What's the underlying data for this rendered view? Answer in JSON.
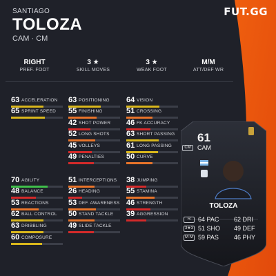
{
  "brand": "FUT.GG",
  "player": {
    "first_name": "SANTIAGO",
    "last_name": "TOLOZA",
    "positions": "CAM · CM"
  },
  "info": [
    {
      "value": "RIGHT",
      "label": "PREF. FOOT"
    },
    {
      "value": "3 ★",
      "label": "SKILL MOVES"
    },
    {
      "value": "3 ★",
      "label": "WEAK FOOT"
    },
    {
      "value": "M/M",
      "label": "ATT/DEF WR"
    }
  ],
  "stats": {
    "acceleration": {
      "value": "63",
      "label": "ACCELERATION"
    },
    "sprint_speed": {
      "value": "65",
      "label": "SPRINT SPEED"
    },
    "positioning": {
      "value": "63",
      "label": "POSITIONING"
    },
    "finishing": {
      "value": "55",
      "label": "FINISHING"
    },
    "shot_power": {
      "value": "42",
      "label": "SHOT POWER"
    },
    "long_shots": {
      "value": "52",
      "label": "LONG SHOTS"
    },
    "volleys": {
      "value": "45",
      "label": "VOLLEYS"
    },
    "penalties": {
      "value": "49",
      "label": "PENALTIES"
    },
    "vision": {
      "value": "64",
      "label": "VISION"
    },
    "crossing": {
      "value": "51",
      "label": "CROSSING"
    },
    "fk_accuracy": {
      "value": "46",
      "label": "FK ACCURACY"
    },
    "short_passing": {
      "value": "63",
      "label": "SHORT PASSING"
    },
    "long_passing": {
      "value": "61",
      "label": "LONG PASSING"
    },
    "curve": {
      "value": "50",
      "label": "CURVE"
    },
    "agility": {
      "value": "70",
      "label": "AGILITY"
    },
    "balance": {
      "value": "48",
      "label": "BALANCE"
    },
    "reactions": {
      "value": "53",
      "label": "REACTIONS"
    },
    "ball_control": {
      "value": "62",
      "label": "BALL CONTROL"
    },
    "dribbling": {
      "value": "63",
      "label": "DRIBBLING"
    },
    "composure": {
      "value": "60",
      "label": "COMPOSURE"
    },
    "interceptions": {
      "value": "51",
      "label": "INTERCEPTIONS"
    },
    "heading": {
      "value": "26",
      "label": "HEADING"
    },
    "def_awareness": {
      "value": "53",
      "label": "DEF. AWARENESS"
    },
    "stand_tackle": {
      "value": "50",
      "label": "STAND TACKLE"
    },
    "slide_tackle": {
      "value": "49",
      "label": "SLIDE TACKLE"
    },
    "jumping": {
      "value": "38",
      "label": "JUMPING"
    },
    "stamina": {
      "value": "55",
      "label": "STAMINA"
    },
    "strength": {
      "value": "46",
      "label": "STRENGTH"
    },
    "aggression": {
      "value": "39",
      "label": "AGGRESSION"
    }
  },
  "card": {
    "rating": "61",
    "position": "CAM",
    "name": "TOLOZA",
    "badges": [
      "CM",
      "R",
      "3★3",
      "M·M"
    ],
    "attrs": {
      "pac": "64 PAC",
      "sho": "51 SHO",
      "pas": "59 PAS",
      "dri": "62 DRI",
      "def": "49 DEF",
      "phy": "46 PHY"
    }
  },
  "colors": {
    "green": "#3fbf4a",
    "yellow": "#d9b71c",
    "orange": "#e8742a",
    "red": "#d42a2a",
    "accent": "#f0600f"
  }
}
